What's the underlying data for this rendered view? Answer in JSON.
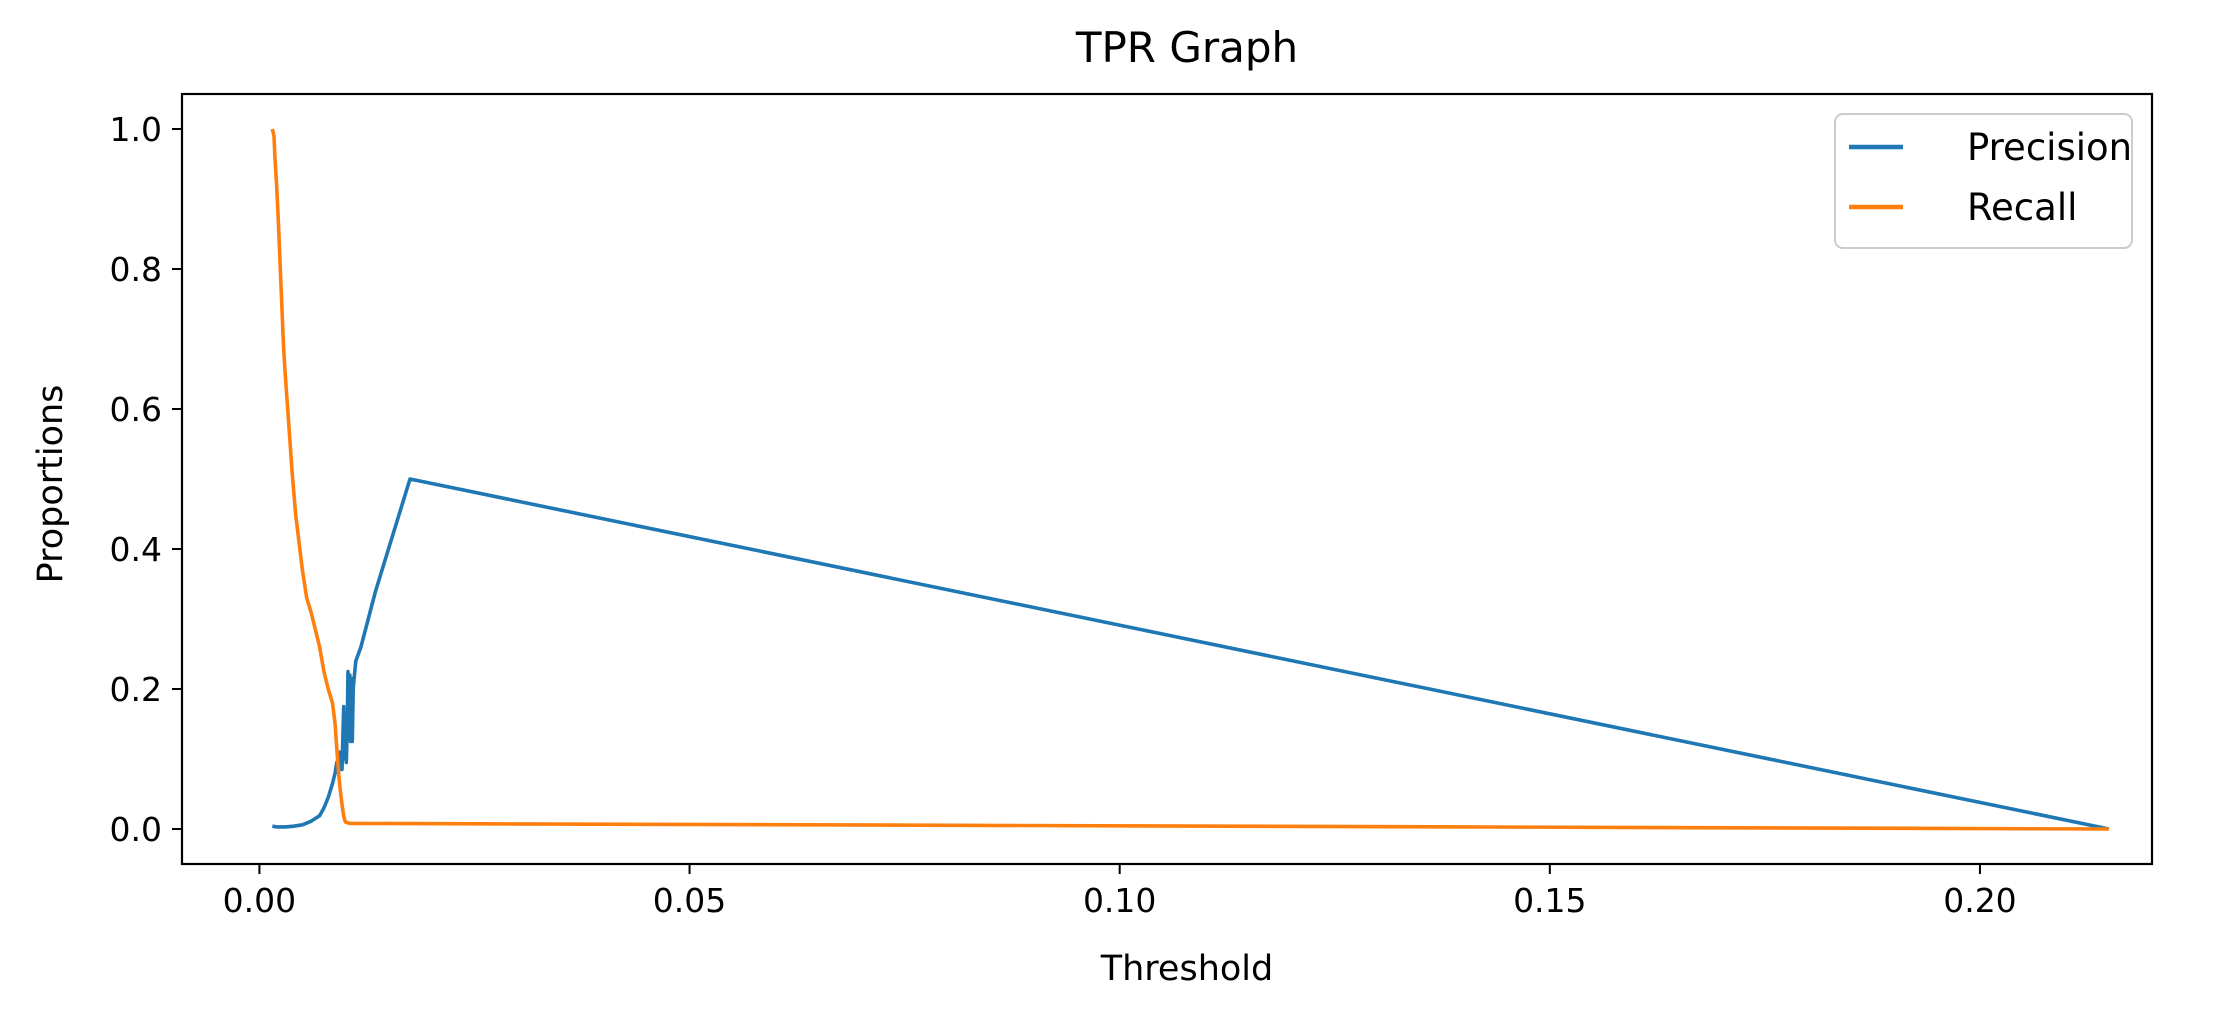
{
  "chart_data": {
    "type": "line",
    "title": "TPR Graph",
    "xlabel": "Threshold",
    "ylabel": "Proportions",
    "xlim": [
      -0.009,
      0.22
    ],
    "ylim": [
      -0.05,
      1.05
    ],
    "xticks": [
      0.0,
      0.05,
      0.1,
      0.15,
      0.2
    ],
    "xtick_labels": [
      "0.00",
      "0.05",
      "0.10",
      "0.15",
      "0.20"
    ],
    "yticks": [
      0.0,
      0.2,
      0.4,
      0.6,
      0.8,
      1.0
    ],
    "ytick_labels": [
      "0.0",
      "0.2",
      "0.4",
      "0.6",
      "0.8",
      "1.0"
    ],
    "grid": false,
    "legend": {
      "position": "top-right"
    },
    "series": [
      {
        "name": "Precision",
        "color": "#1f77b4",
        "x": [
          0.0015,
          0.002,
          0.003,
          0.004,
          0.005,
          0.006,
          0.007,
          0.0075,
          0.008,
          0.0085,
          0.0088,
          0.009,
          0.0092,
          0.0094,
          0.0096,
          0.0098,
          0.0099,
          0.01,
          0.0101,
          0.0102,
          0.0103,
          0.0104,
          0.0105,
          0.0106,
          0.0107,
          0.0108,
          0.0109,
          0.011,
          0.0112,
          0.0118,
          0.0135,
          0.0175,
          0.215
        ],
        "y": [
          0.004,
          0.003,
          0.003,
          0.004,
          0.006,
          0.011,
          0.019,
          0.03,
          0.045,
          0.065,
          0.08,
          0.095,
          0.08,
          0.11,
          0.085,
          0.175,
          0.1,
          0.165,
          0.095,
          0.14,
          0.225,
          0.13,
          0.22,
          0.125,
          0.215,
          0.125,
          0.2,
          0.215,
          0.24,
          0.26,
          0.34,
          0.5,
          0.0
        ]
      },
      {
        "name": "Recall",
        "color": "#ff7f0e",
        "x": [
          0.0015,
          0.0017,
          0.0018,
          0.002,
          0.0022,
          0.0025,
          0.0028,
          0.003,
          0.0034,
          0.0038,
          0.0042,
          0.0046,
          0.005,
          0.0055,
          0.006,
          0.0066,
          0.007,
          0.0075,
          0.008,
          0.0085,
          0.0088,
          0.009,
          0.0092,
          0.0094,
          0.0096,
          0.0098,
          0.01,
          0.0105,
          0.011,
          0.215
        ],
        "y": [
          1.0,
          0.99,
          0.96,
          0.92,
          0.87,
          0.78,
          0.69,
          0.65,
          0.58,
          0.51,
          0.45,
          0.41,
          0.37,
          0.33,
          0.31,
          0.28,
          0.26,
          0.225,
          0.2,
          0.18,
          0.15,
          0.115,
          0.08,
          0.055,
          0.035,
          0.018,
          0.01,
          0.008,
          0.008,
          0.0
        ]
      }
    ]
  }
}
